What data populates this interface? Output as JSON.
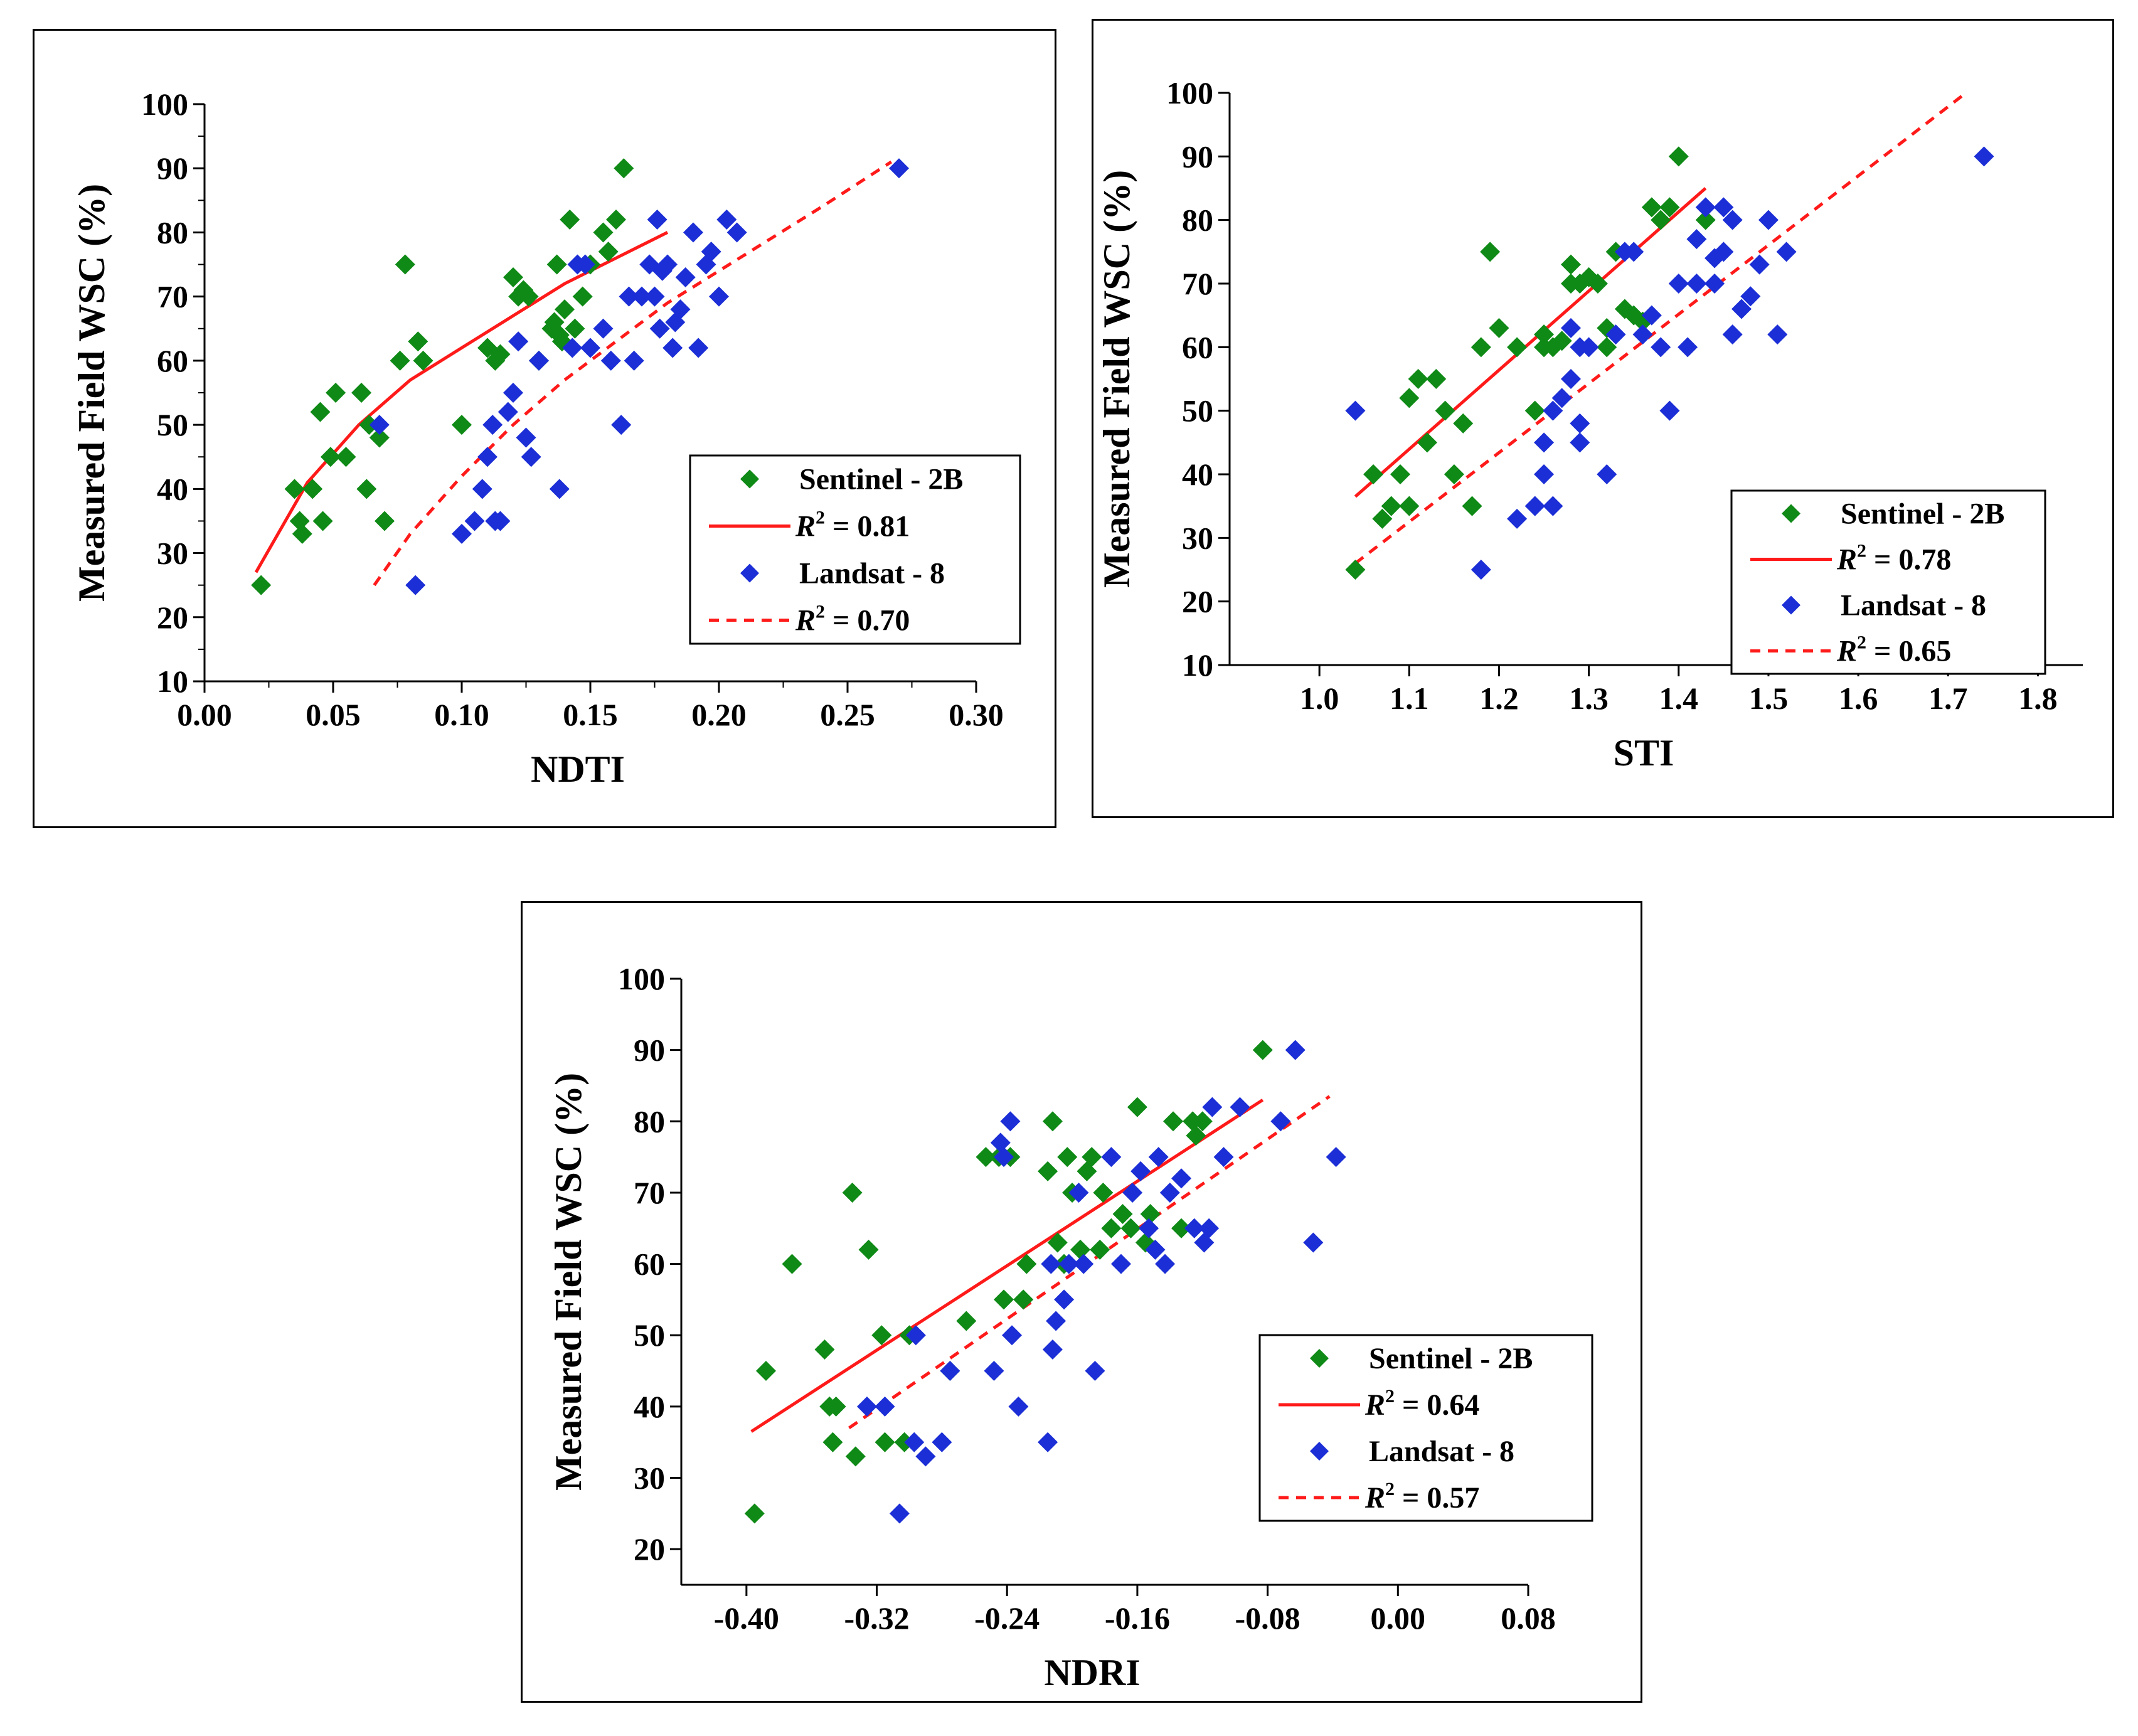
{
  "colors": {
    "sentinel": "#0f8a16",
    "landsat": "#1c2fd6",
    "fit": "#ff1a1a",
    "frame": "#000000"
  },
  "chart_data": [
    {
      "id": "ndti",
      "type": "scatter",
      "xlabel": "NDTI",
      "ylabel": "Measured Field WSC (%)",
      "xlim": [
        0.0,
        0.3
      ],
      "ylim": [
        10,
        100
      ],
      "xticks": [
        0.0,
        0.05,
        0.1,
        0.15,
        0.2,
        0.25,
        0.3
      ],
      "xtick_labels": [
        "0.00",
        "0.05",
        "0.10",
        "0.15",
        "0.20",
        "0.25",
        "0.30"
      ],
      "yticks": [
        10,
        20,
        30,
        40,
        50,
        60,
        70,
        80,
        90,
        100
      ],
      "ytick_labels": [
        "10",
        "20",
        "30",
        "40",
        "50",
        "60",
        "70",
        "80",
        "90",
        "100"
      ],
      "legend_position": "bottom-right",
      "series": [
        {
          "name": "Sentinel - 2B",
          "marker": "diamond",
          "color": "sentinel",
          "x": [
            0.022,
            0.035,
            0.037,
            0.038,
            0.042,
            0.045,
            0.046,
            0.049,
            0.051,
            0.055,
            0.061,
            0.063,
            0.064,
            0.068,
            0.07,
            0.076,
            0.078,
            0.083,
            0.085,
            0.1,
            0.11,
            0.113,
            0.115,
            0.12,
            0.122,
            0.124,
            0.126,
            0.13,
            0.136,
            0.137,
            0.138,
            0.139,
            0.14,
            0.142,
            0.144,
            0.147,
            0.15,
            0.155,
            0.157,
            0.16,
            0.163,
            0.135
          ],
          "y": [
            25,
            40,
            35,
            33,
            40,
            52,
            35,
            45,
            55,
            45,
            55,
            40,
            50,
            48,
            35,
            60,
            75,
            63,
            60,
            50,
            62,
            60,
            61,
            73,
            70,
            71,
            70,
            60,
            66,
            75,
            64,
            63,
            68,
            82,
            65,
            70,
            75,
            80,
            77,
            82,
            90,
            65
          ]
        },
        {
          "name": "Landsat - 8",
          "marker": "diamond",
          "color": "landsat",
          "x": [
            0.068,
            0.082,
            0.1,
            0.105,
            0.108,
            0.11,
            0.112,
            0.113,
            0.115,
            0.118,
            0.12,
            0.122,
            0.125,
            0.127,
            0.13,
            0.138,
            0.143,
            0.145,
            0.148,
            0.15,
            0.155,
            0.158,
            0.162,
            0.165,
            0.167,
            0.17,
            0.175,
            0.176,
            0.178,
            0.18,
            0.182,
            0.183,
            0.185,
            0.187,
            0.19,
            0.192,
            0.195,
            0.197,
            0.2,
            0.203,
            0.207,
            0.27,
            0.173,
            0.177
          ],
          "y": [
            50,
            25,
            33,
            35,
            40,
            45,
            50,
            35,
            35,
            52,
            55,
            63,
            48,
            45,
            60,
            40,
            62,
            75,
            75,
            62,
            65,
            60,
            50,
            70,
            60,
            70,
            70,
            82,
            74,
            75,
            62,
            66,
            68,
            73,
            80,
            62,
            75,
            77,
            70,
            82,
            80,
            90,
            75,
            65
          ]
        },
        {
          "name": "R² = 0.81",
          "type": "line",
          "style": "solid",
          "color": "fit",
          "r2_value": "= 0.81",
          "x": [
            0.02,
            0.04,
            0.06,
            0.08,
            0.1,
            0.12,
            0.14,
            0.16,
            0.18
          ],
          "y": [
            27,
            41,
            50,
            57,
            62,
            67,
            72,
            76,
            80
          ]
        },
        {
          "name": "R² = 0.70",
          "type": "line",
          "style": "dashed",
          "color": "fit",
          "r2_value": "= 0.70",
          "x": [
            0.066,
            0.08,
            0.1,
            0.12,
            0.14,
            0.16,
            0.18,
            0.2,
            0.22,
            0.24,
            0.267
          ],
          "y": [
            25,
            33,
            42,
            50,
            57,
            63,
            69,
            74,
            79,
            84,
            91
          ]
        }
      ]
    },
    {
      "id": "sti",
      "type": "scatter",
      "xlabel": "STI",
      "ylabel": "Measured Field WSC (%)",
      "xlim": [
        0.9,
        1.85
      ],
      "ylim": [
        10,
        100
      ],
      "xticks": [
        1.0,
        1.1,
        1.2,
        1.3,
        1.4,
        1.5,
        1.6,
        1.7,
        1.8
      ],
      "xtick_labels": [
        "1.0",
        "1.1",
        "1.2",
        "1.3",
        "1.4",
        "1.5",
        "1.6",
        "1.7",
        "1.8"
      ],
      "yticks": [
        10,
        20,
        30,
        40,
        50,
        60,
        70,
        80,
        90,
        100
      ],
      "ytick_labels": [
        "10",
        "20",
        "30",
        "40",
        "50",
        "60",
        "70",
        "80",
        "90",
        "100"
      ],
      "legend_position": "bottom-right",
      "series": [
        {
          "name": "Sentinel - 2B",
          "marker": "diamond",
          "color": "sentinel",
          "x": [
            1.04,
            1.06,
            1.07,
            1.08,
            1.09,
            1.1,
            1.1,
            1.11,
            1.12,
            1.13,
            1.14,
            1.15,
            1.16,
            1.17,
            1.18,
            1.19,
            1.2,
            1.22,
            1.24,
            1.25,
            1.26,
            1.27,
            1.28,
            1.29,
            1.3,
            1.31,
            1.32,
            1.33,
            1.34,
            1.35,
            1.36,
            1.37,
            1.38,
            1.39,
            1.4,
            1.43,
            1.32,
            1.28,
            1.25
          ],
          "y": [
            25,
            40,
            33,
            35,
            40,
            52,
            35,
            55,
            45,
            55,
            50,
            40,
            48,
            35,
            60,
            75,
            63,
            60,
            50,
            62,
            60,
            61,
            73,
            70,
            71,
            70,
            60,
            75,
            66,
            65,
            64,
            82,
            80,
            82,
            90,
            80,
            63,
            70,
            60
          ]
        },
        {
          "name": "Landsat - 8",
          "marker": "diamond",
          "color": "landsat",
          "x": [
            1.04,
            1.18,
            1.22,
            1.24,
            1.25,
            1.25,
            1.26,
            1.26,
            1.27,
            1.28,
            1.28,
            1.29,
            1.29,
            1.3,
            1.32,
            1.33,
            1.34,
            1.35,
            1.36,
            1.37,
            1.38,
            1.39,
            1.4,
            1.41,
            1.42,
            1.43,
            1.44,
            1.45,
            1.46,
            1.47,
            1.48,
            1.49,
            1.5,
            1.51,
            1.52,
            1.42,
            1.44,
            1.45,
            1.46,
            1.74,
            1.24,
            1.29
          ],
          "y": [
            50,
            25,
            33,
            35,
            40,
            45,
            50,
            35,
            52,
            55,
            63,
            48,
            45,
            60,
            40,
            62,
            75,
            75,
            62,
            65,
            60,
            50,
            70,
            60,
            70,
            82,
            74,
            75,
            62,
            66,
            68,
            73,
            80,
            62,
            75,
            77,
            70,
            82,
            80,
            90,
            35,
            60
          ]
        },
        {
          "name": "R² = 0.78",
          "type": "line",
          "style": "solid",
          "color": "fit",
          "r2_value": "= 0.78",
          "x": [
            1.04,
            1.43
          ],
          "y": [
            36.5,
            85
          ]
        },
        {
          "name": "R² = 0.65",
          "type": "line",
          "style": "dashed",
          "color": "fit",
          "r2_value": "= 0.65",
          "x": [
            1.04,
            1.72
          ],
          "y": [
            26,
            100
          ]
        }
      ]
    },
    {
      "id": "ndri",
      "type": "scatter",
      "xlabel": "NDRI",
      "ylabel": "Measured Field WSC (%)",
      "xlim": [
        -0.44,
        0.08
      ],
      "ylim": [
        15,
        100
      ],
      "xticks": [
        -0.4,
        -0.32,
        -0.24,
        -0.16,
        -0.08,
        0.0,
        0.08
      ],
      "xtick_labels": [
        "-0.40",
        "-0.32",
        "-0.24",
        "-0.16",
        "-0.08",
        "0.00",
        "0.08"
      ],
      "yticks": [
        20,
        30,
        40,
        50,
        60,
        70,
        80,
        90,
        100
      ],
      "ytick_labels": [
        "20",
        "30",
        "40",
        "50",
        "60",
        "70",
        "80",
        "90",
        "100"
      ],
      "legend_position": "bottom-right",
      "series": [
        {
          "name": "Sentinel - 2B",
          "marker": "diamond",
          "color": "sentinel",
          "x": [
            -0.395,
            -0.388,
            -0.372,
            -0.352,
            -0.349,
            -0.347,
            -0.345,
            -0.335,
            -0.333,
            -0.325,
            -0.317,
            -0.315,
            -0.303,
            -0.3,
            -0.275,
            -0.265,
            -0.253,
            -0.245,
            -0.242,
            -0.238,
            -0.23,
            -0.228,
            -0.215,
            -0.212,
            -0.209,
            -0.205,
            -0.203,
            -0.2,
            -0.195,
            -0.191,
            -0.188,
            -0.183,
            -0.181,
            -0.176,
            -0.169,
            -0.164,
            -0.16,
            -0.155,
            -0.152,
            -0.138,
            -0.133,
            -0.126,
            -0.124,
            -0.12,
            -0.083
          ],
          "y": [
            25,
            45,
            60,
            48,
            40,
            35,
            40,
            70,
            33,
            62,
            50,
            35,
            35,
            50,
            45,
            52,
            75,
            75,
            55,
            75,
            55,
            60,
            73,
            80,
            63,
            60,
            75,
            70,
            62,
            73,
            75,
            62,
            70,
            65,
            67,
            65,
            82,
            63,
            67,
            80,
            65,
            80,
            78,
            80,
            90
          ]
        },
        {
          "name": "Landsat - 8",
          "marker": "diamond",
          "color": "landsat",
          "x": [
            -0.326,
            -0.315,
            -0.306,
            -0.297,
            -0.296,
            -0.29,
            -0.28,
            -0.275,
            -0.248,
            -0.244,
            -0.242,
            -0.238,
            -0.237,
            -0.233,
            -0.215,
            -0.213,
            -0.212,
            -0.21,
            -0.205,
            -0.202,
            -0.196,
            -0.193,
            -0.186,
            -0.176,
            -0.17,
            -0.163,
            -0.158,
            -0.153,
            -0.149,
            -0.147,
            -0.143,
            -0.14,
            -0.133,
            -0.125,
            -0.119,
            -0.116,
            -0.114,
            -0.107,
            -0.097,
            -0.072,
            -0.063,
            -0.052,
            -0.038
          ],
          "y": [
            40,
            40,
            25,
            35,
            50,
            33,
            35,
            45,
            45,
            77,
            75,
            80,
            50,
            40,
            35,
            60,
            48,
            52,
            55,
            60,
            70,
            60,
            45,
            75,
            60,
            70,
            73,
            65,
            62,
            75,
            60,
            70,
            72,
            65,
            63,
            65,
            82,
            75,
            82,
            80,
            90,
            63,
            75
          ]
        },
        {
          "name": "R² = 0.64",
          "type": "line",
          "style": "solid",
          "color": "fit",
          "r2_value": "= 0.64",
          "x": [
            -0.397,
            -0.083
          ],
          "y": [
            36.5,
            83
          ]
        },
        {
          "name": "R² = 0.57",
          "type": "line",
          "style": "dashed",
          "color": "fit",
          "r2_value": "= 0.57",
          "x": [
            -0.337,
            -0.042
          ],
          "y": [
            37,
            83.5
          ]
        }
      ]
    }
  ]
}
